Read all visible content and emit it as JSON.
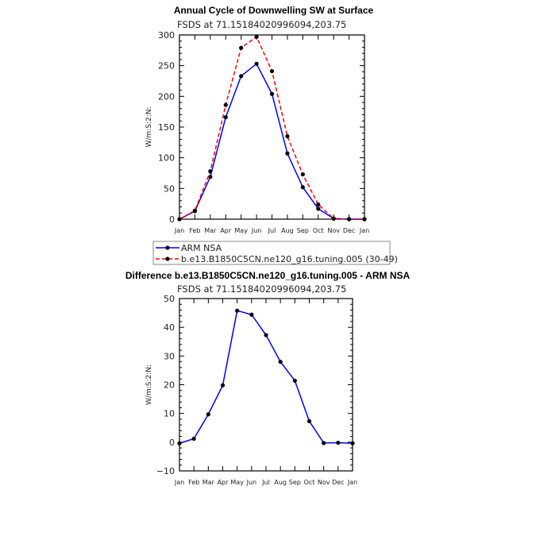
{
  "chart_data": [
    {
      "type": "line",
      "title": "Annual Cycle of Downwelling SW at Surface",
      "subtitle": "FSDS at 71.15184020996094,203.75",
      "xlabel": "",
      "ylabel": "W/m:S:2:N:",
      "categories": [
        "Jan",
        "Feb",
        "Mar",
        "Apr",
        "May",
        "Jun",
        "Jul",
        "Aug",
        "Sep",
        "Oct",
        "Nov",
        "Dec",
        "Jan"
      ],
      "ylim": [
        0,
        300
      ],
      "yticks": [
        "0",
        "50",
        "100",
        "150",
        "200",
        "250",
        "300"
      ],
      "grid": false,
      "legend": "below",
      "series": [
        {
          "name": "ARM NSA",
          "color": "#0000ff",
          "dash": false,
          "values": [
            0,
            13,
            69,
            166,
            233,
            253,
            204,
            107,
            52,
            17,
            1,
            0,
            0
          ]
        },
        {
          "name": "b.e13.B1850C5CN.ne120_g16.tuning.005 (30-49)",
          "color": "#ff0000",
          "dash": true,
          "values": [
            0,
            14,
            78,
            186,
            279,
            297,
            241,
            135,
            73,
            24,
            1,
            0,
            0
          ]
        }
      ]
    },
    {
      "type": "line",
      "title": "Difference b.e13.B1850C5CN.ne120_g16.tuning.005 - ARM NSA",
      "subtitle": "FSDS at 71.15184020996094,203.75",
      "xlabel": "",
      "ylabel": "W/m:S:2:N:",
      "categories": [
        "Jan",
        "Feb",
        "Mar",
        "Apr",
        "May",
        "Jun",
        "Jul",
        "Aug",
        "Sep",
        "Oct",
        "Nov",
        "Dec",
        "Jan"
      ],
      "ylim": [
        -10,
        50
      ],
      "yticks": [
        "−10",
        "0",
        "10",
        "20",
        "30",
        "40",
        "50"
      ],
      "grid": false,
      "series": [
        {
          "name": "Difference",
          "color": "#0000ff",
          "dash": false,
          "values": [
            -0.4,
            1.2,
            9.7,
            19.8,
            45.8,
            44.4,
            37.3,
            28.0,
            21.4,
            7.3,
            -0.3,
            -0.2,
            -0.4
          ]
        }
      ]
    }
  ]
}
